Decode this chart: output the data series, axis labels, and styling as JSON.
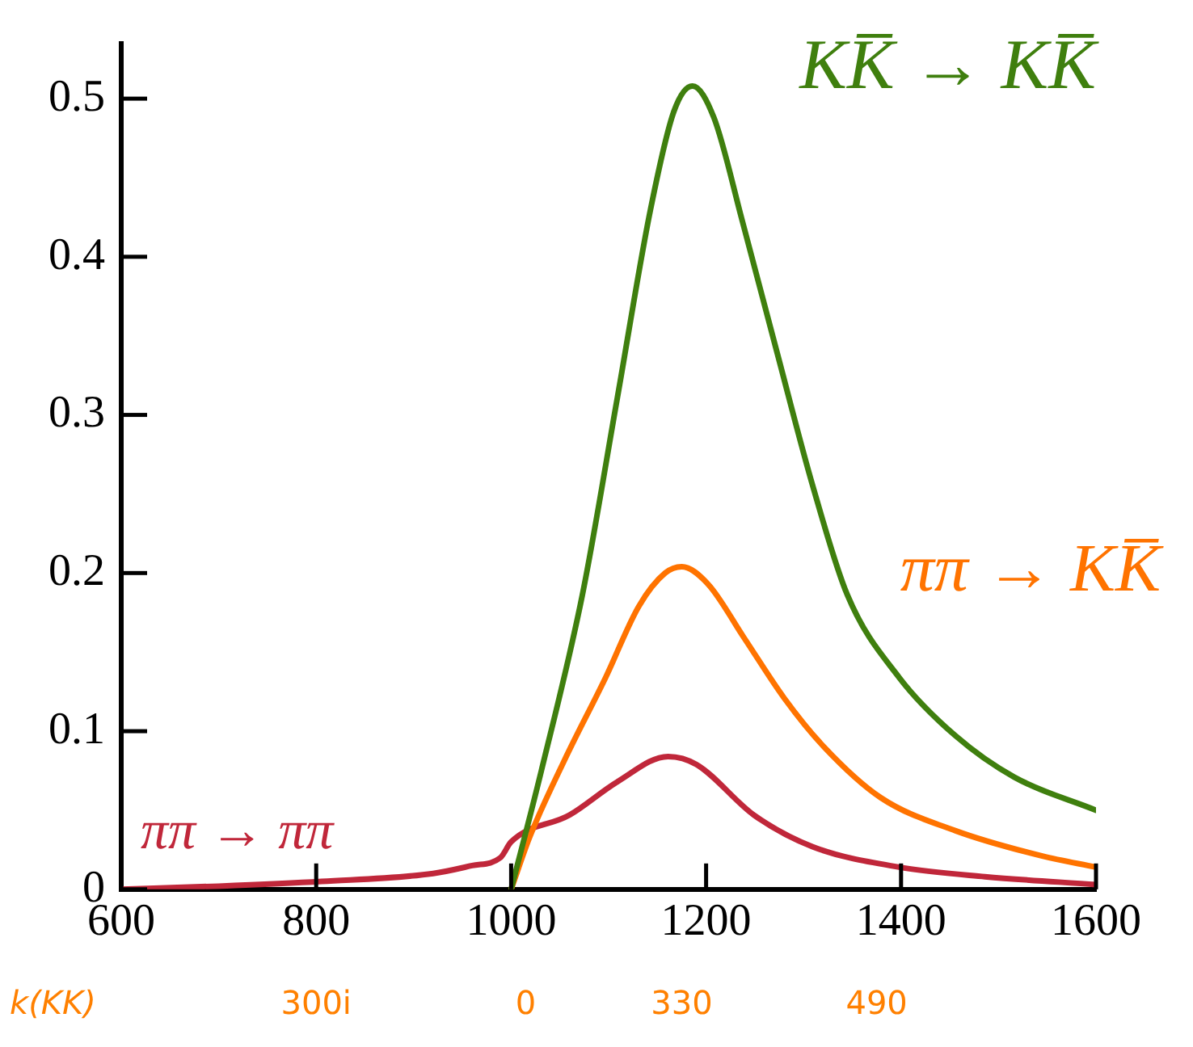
{
  "chart_data": {
    "type": "line",
    "xlim": [
      600,
      1600
    ],
    "ylim": [
      0,
      0.535
    ],
    "xticks": [
      600,
      800,
      1000,
      1200,
      1400,
      1600
    ],
    "yticks": [
      0,
      0.1,
      0.2,
      0.3,
      0.4,
      0.5
    ],
    "annotations": [
      "k(KK)",
      "300i",
      "0",
      "330",
      "490"
    ],
    "grid": false,
    "legend": false,
    "marker": "none",
    "line_style": "solid",
    "series": [
      {
        "name": "KK̅ → KK̅",
        "color": "#3f7f0e",
        "x": [
          1000,
          1031,
          1073,
          1109,
          1143,
          1167,
          1186,
          1208,
          1237,
          1273,
          1309,
          1345,
          1398,
          1456,
          1516,
          1600
        ],
        "values": [
          0,
          0.075,
          0.186,
          0.311,
          0.43,
          0.492,
          0.508,
          0.488,
          0.423,
          0.339,
          0.256,
          0.186,
          0.134,
          0.097,
          0.071,
          0.05
        ]
      },
      {
        "name": "ππ → KK̅",
        "color": "#ff7300",
        "x": [
          1000,
          1019,
          1055,
          1097,
          1131,
          1158,
          1175,
          1202,
          1239,
          1280,
          1321,
          1379,
          1456,
          1545,
          1600
        ],
        "values": [
          0,
          0.033,
          0.082,
          0.134,
          0.179,
          0.2,
          0.204,
          0.193,
          0.159,
          0.121,
          0.09,
          0.058,
          0.037,
          0.021,
          0.014
        ]
      },
      {
        "name": "ππ → ππ",
        "color": "#c0273a",
        "x": [
          600,
          700,
          806,
          920,
          960,
          989,
          1000,
          1060,
          1109,
          1161,
          1190,
          1249,
          1309,
          1398,
          1486,
          1600
        ],
        "values": [
          0,
          0.002,
          0.005,
          0.01,
          0.015,
          0.02,
          0.03,
          0.047,
          0.068,
          0.084,
          0.079,
          0.047,
          0.027,
          0.014,
          0.008,
          0.003
        ]
      }
    ]
  }
}
